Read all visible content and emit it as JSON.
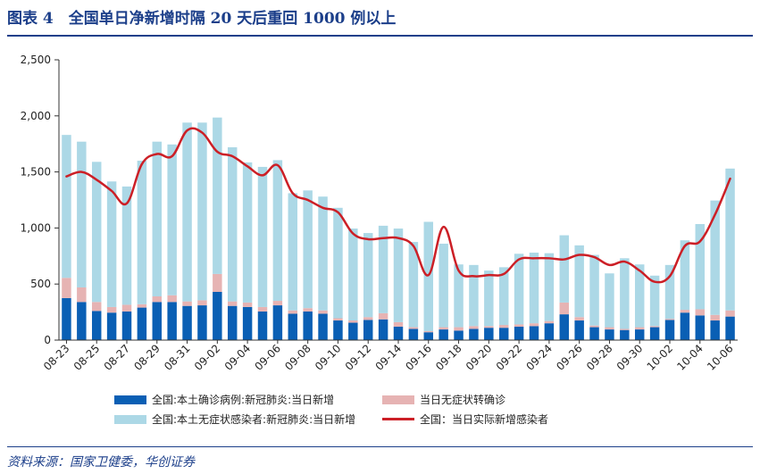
{
  "title": "图表 4　全国单日净新增时隔 20 天后重回 1000 例以上",
  "source": "资料来源：国家卫健委，华创证券",
  "colors": {
    "confirmed": "#0a5fb4",
    "asymptomatic_to_confirmed": "#e6b3b3",
    "asymptomatic": "#acd8e6",
    "net_new": "#cc1f26",
    "title": "#1c3f8a"
  },
  "legend": [
    {
      "key": "confirmed",
      "label": "全国:本土确诊病例:新冠肺炎:当日新增"
    },
    {
      "key": "asymptomatic_to_confirmed",
      "label": "当日无症状转确诊"
    },
    {
      "key": "asymptomatic",
      "label": "全国:本土无症状感染者:新冠肺炎:当日新增"
    },
    {
      "key": "net_new",
      "label": "全国：当日实际新增感染者"
    }
  ],
  "chart_data": {
    "type": "bar",
    "stacked": true,
    "ylim": [
      0,
      2500
    ],
    "yticks": [
      0,
      500,
      1000,
      1500,
      2000,
      2500
    ],
    "ytick_labels": [
      "0",
      "500",
      "1,000",
      "1,500",
      "2,000",
      "2,500"
    ],
    "categories": [
      "08-23",
      "08-24",
      "08-25",
      "08-26",
      "08-27",
      "08-28",
      "08-29",
      "08-30",
      "08-31",
      "09-01",
      "09-02",
      "09-03",
      "09-04",
      "09-05",
      "09-06",
      "09-07",
      "09-08",
      "09-09",
      "09-10",
      "09-11",
      "09-12",
      "09-13",
      "09-14",
      "09-15",
      "09-16",
      "09-17",
      "09-18",
      "09-19",
      "09-20",
      "09-21",
      "09-22",
      "09-23",
      "09-24",
      "09-25",
      "09-26",
      "09-27",
      "09-28",
      "09-29",
      "09-30",
      "10-01",
      "10-02",
      "10-03",
      "10-04",
      "10-05",
      "10-06"
    ],
    "xtick_labels": [
      "08-23",
      "08-25",
      "08-27",
      "08-29",
      "08-31",
      "09-02",
      "09-04",
      "09-06",
      "09-08",
      "09-10",
      "09-12",
      "09-14",
      "09-16",
      "09-18",
      "09-20",
      "09-22",
      "09-24",
      "09-26",
      "09-28",
      "09-30",
      "10-02",
      "10-04",
      "10-06"
    ],
    "series": [
      {
        "name": "全国:本土确诊病例:新冠肺炎:当日新增",
        "type": "bar",
        "values": [
          375,
          340,
          260,
          245,
          255,
          290,
          340,
          340,
          305,
          310,
          430,
          305,
          295,
          255,
          310,
          235,
          255,
          235,
          175,
          155,
          180,
          185,
          120,
          100,
          70,
          95,
          85,
          100,
          110,
          110,
          120,
          125,
          150,
          230,
          175,
          115,
          95,
          90,
          95,
          115,
          180,
          245,
          220,
          175,
          210
        ]
      },
      {
        "name": "当日无症状转确诊",
        "type": "bar",
        "values": [
          180,
          130,
          80,
          50,
          60,
          30,
          50,
          60,
          40,
          45,
          160,
          40,
          40,
          40,
          40,
          30,
          30,
          30,
          20,
          20,
          25,
          55,
          40,
          15,
          10,
          20,
          30,
          25,
          15,
          25,
          20,
          25,
          20,
          105,
          30,
          15,
          20,
          10,
          20,
          10,
          10,
          25,
          55,
          50,
          55
        ]
      },
      {
        "name": "全国:本土无症状感染者:新冠肺炎:当日新增",
        "type": "bar",
        "values": [
          1275,
          1300,
          1250,
          1120,
          1055,
          1280,
          1380,
          1345,
          1595,
          1585,
          1395,
          1375,
          1250,
          1250,
          1255,
          1045,
          1050,
          1015,
          985,
          820,
          750,
          780,
          835,
          760,
          975,
          745,
          560,
          545,
          495,
          515,
          630,
          630,
          605,
          600,
          640,
          630,
          480,
          630,
          560,
          450,
          480,
          620,
          760,
          1020,
          1265
        ]
      },
      {
        "name": "全国：当日实际新增感染者",
        "type": "line",
        "values": [
          1460,
          1500,
          1430,
          1330,
          1220,
          1570,
          1660,
          1640,
          1870,
          1850,
          1680,
          1640,
          1550,
          1470,
          1560,
          1310,
          1250,
          1180,
          1140,
          950,
          900,
          910,
          910,
          840,
          580,
          1010,
          620,
          570,
          580,
          590,
          720,
          730,
          730,
          720,
          760,
          740,
          670,
          700,
          620,
          520,
          570,
          840,
          880,
          1120,
          1440
        ]
      }
    ]
  }
}
